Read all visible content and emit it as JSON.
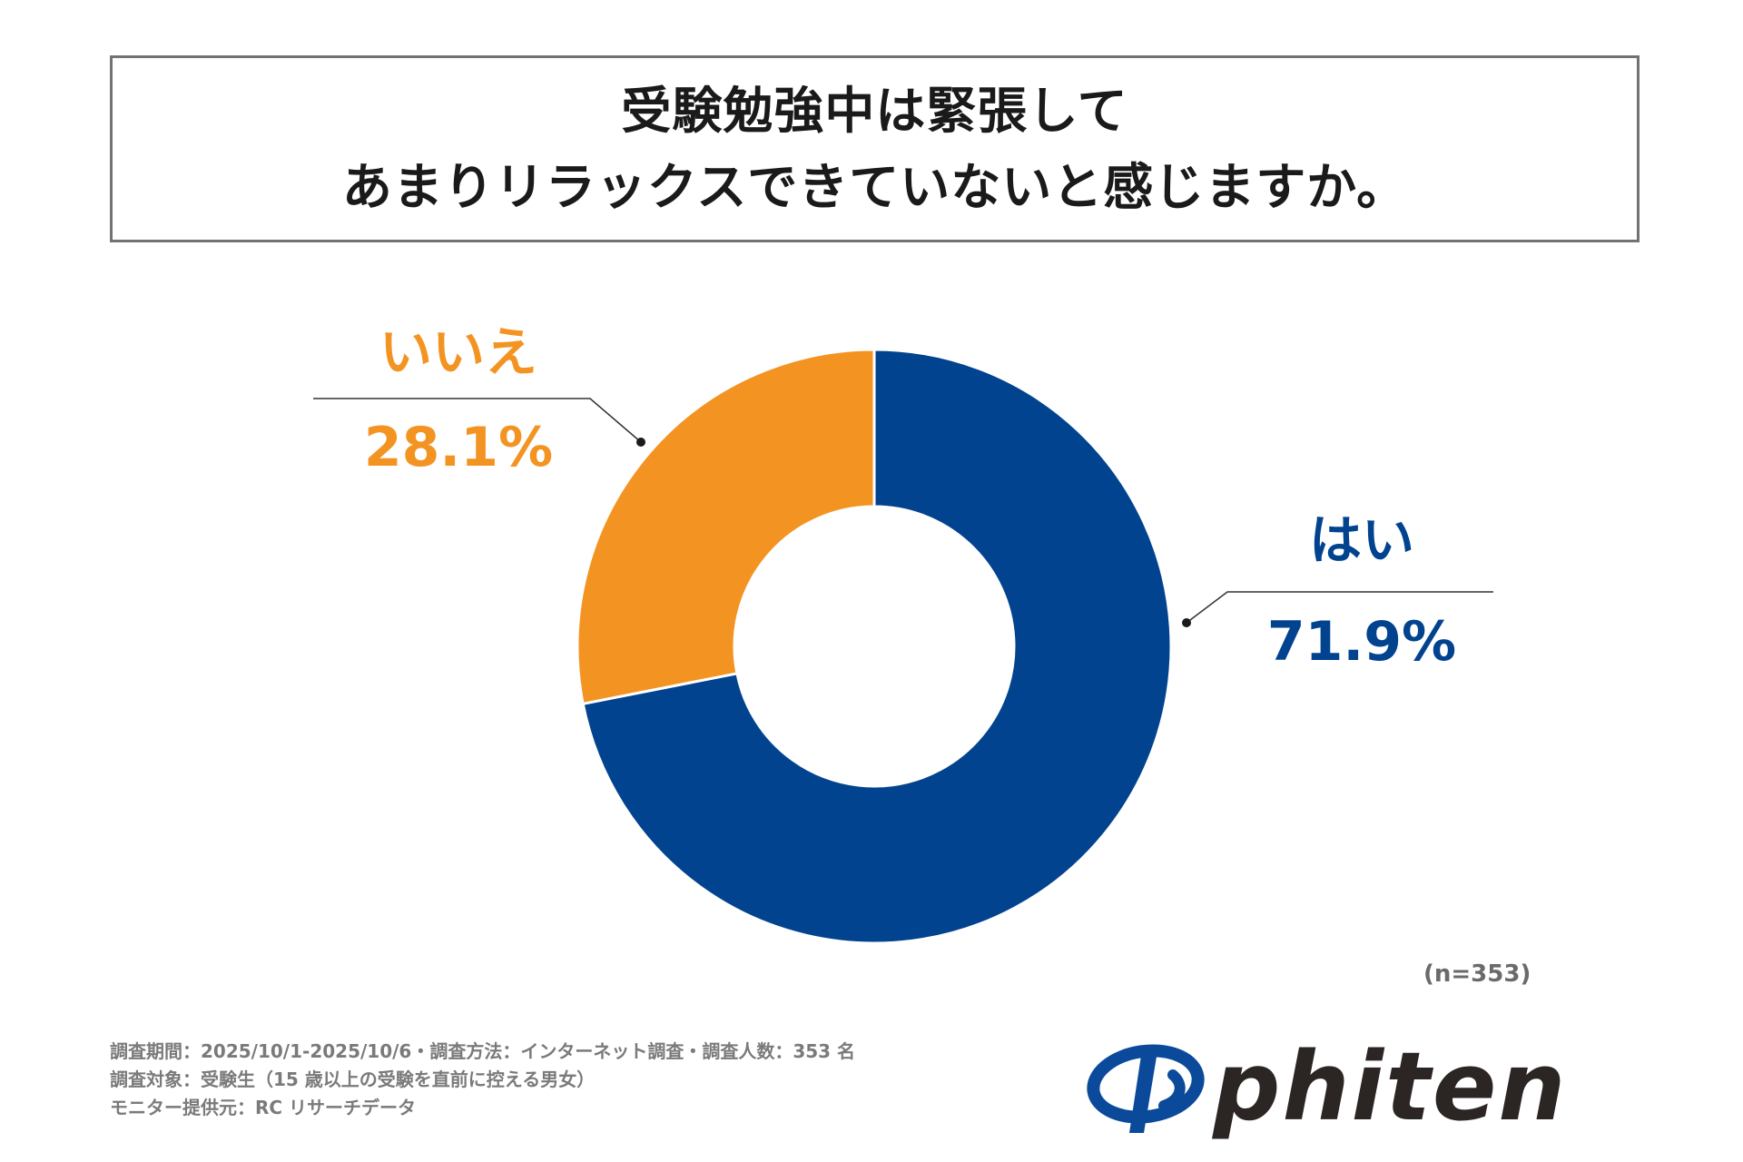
{
  "title": {
    "line1": "受験勉強中は緊張して",
    "line2": "あまりリラックスできていないと感じますか。"
  },
  "chart_data": {
    "type": "pie",
    "title": "受験勉強中は緊張して あまりリラックスできていないと感じますか。",
    "slices": [
      {
        "label": "はい",
        "value": 71.9,
        "display": "71.9%",
        "color": "#02438f"
      },
      {
        "label": "いいえ",
        "value": 28.1,
        "display": "28.1%",
        "color": "#f39422"
      }
    ],
    "donut": true
  },
  "sample_size": "(n=353)",
  "footnotes": [
    "調査期間：2025/10/1-2025/10/6・調査方法：インターネット調査・調査人数：353 名",
    "調査対象：受験生（15 歳以上の受験を直前に控える男女）",
    "モニター提供元：RC リサーチデータ"
  ],
  "logo": {
    "text": "phiten",
    "icon": "phiten-swoosh-logo-icon",
    "colors": {
      "mark": "#0b4a9a",
      "word": "#2b2523"
    }
  }
}
